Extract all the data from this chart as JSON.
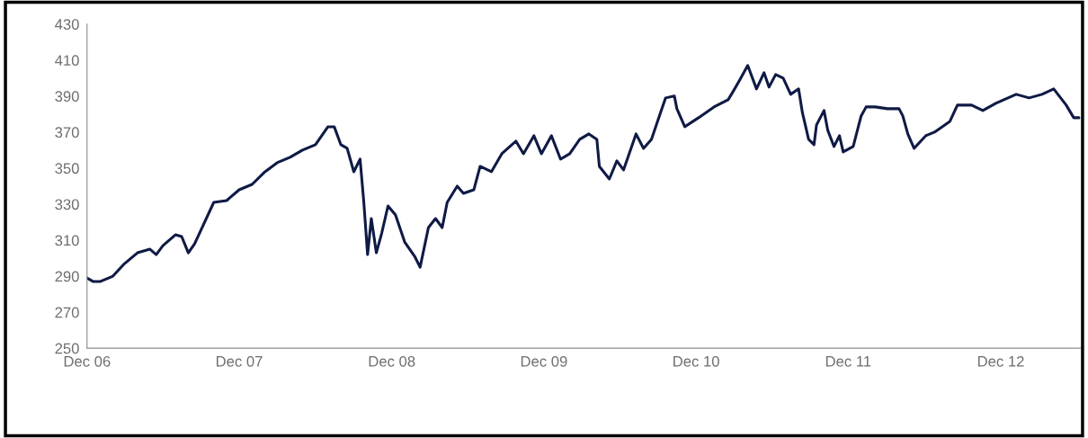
{
  "chart_data": {
    "type": "line",
    "x": [
      "2006-12-01",
      "2006-12-16",
      "2007-01-01",
      "2007-02-01",
      "2007-03-01",
      "2007-04-01",
      "2007-05-01",
      "2007-05-16",
      "2007-06-01",
      "2007-07-01",
      "2007-07-16",
      "2007-08-01",
      "2007-08-16",
      "2007-09-01",
      "2007-10-01",
      "2007-11-01",
      "2007-12-01",
      "2008-01-01",
      "2008-02-01",
      "2008-03-01",
      "2008-04-01",
      "2008-05-01",
      "2008-06-01",
      "2008-07-01",
      "2008-07-16",
      "2008-08-01",
      "2008-08-16",
      "2008-09-01",
      "2008-09-16",
      "2008-09-25",
      "2008-10-04",
      "2008-10-13",
      "2008-10-25",
      "2008-11-07",
      "2008-11-22",
      "2008-12-10",
      "2009-01-01",
      "2009-01-25",
      "2009-02-07",
      "2009-02-27",
      "2009-03-16",
      "2009-04-01",
      "2009-04-13",
      "2009-05-07",
      "2009-05-22",
      "2009-06-16",
      "2009-07-01",
      "2009-07-28",
      "2009-08-22",
      "2009-09-25",
      "2009-10-13",
      "2009-11-07",
      "2009-11-25",
      "2009-12-19",
      "2010-01-10",
      "2010-02-01",
      "2010-02-25",
      "2010-03-19",
      "2010-04-07",
      "2010-04-13",
      "2010-05-07",
      "2010-05-25",
      "2010-06-10",
      "2010-07-10",
      "2010-07-28",
      "2010-08-16",
      "2010-09-04",
      "2010-09-19",
      "2010-10-10",
      "2010-10-16",
      "2010-11-04",
      "2010-12-07",
      "2011-01-13",
      "2011-02-16",
      "2011-03-01",
      "2011-03-16",
      "2011-04-04",
      "2011-04-25",
      "2011-05-13",
      "2011-05-25",
      "2011-06-10",
      "2011-06-28",
      "2011-07-16",
      "2011-08-04",
      "2011-08-13",
      "2011-08-28",
      "2011-09-10",
      "2011-09-16",
      "2011-10-04",
      "2011-10-13",
      "2011-10-28",
      "2011-11-10",
      "2011-11-19",
      "2011-12-13",
      "2012-01-01",
      "2012-01-13",
      "2012-02-04",
      "2012-03-04",
      "2012-04-01",
      "2012-04-10",
      "2012-04-22",
      "2012-05-07",
      "2012-06-04",
      "2012-06-25",
      "2012-08-01",
      "2012-08-19",
      "2012-09-22",
      "2012-10-19",
      "2012-11-19",
      "2013-01-07",
      "2013-02-07",
      "2013-03-10",
      "2013-04-07",
      "2013-05-07",
      "2013-05-25",
      "2013-06-07"
    ],
    "series": [
      {
        "color": "#0f1a45",
        "values": [
          289,
          287,
          287,
          290,
          297,
          303,
          305,
          302,
          307,
          313,
          312,
          303,
          308,
          316,
          331,
          332,
          338,
          341,
          348,
          353,
          356,
          360,
          363,
          373,
          373,
          363,
          361,
          348,
          355,
          331,
          302,
          322,
          303,
          314,
          329,
          324,
          309,
          301,
          295,
          317,
          322,
          317,
          331,
          340,
          336,
          338,
          351,
          348,
          358,
          365,
          358,
          368,
          358,
          368,
          355,
          358,
          366,
          369,
          366,
          351,
          344,
          354,
          349,
          369,
          361,
          366,
          379,
          389,
          390,
          383,
          373,
          378,
          384,
          388,
          393,
          399,
          407,
          394,
          403,
          395,
          402,
          400,
          391,
          394,
          381,
          366,
          363,
          374,
          382,
          371,
          362,
          368,
          359,
          362,
          379,
          384,
          384,
          383,
          383,
          379,
          369,
          361,
          368,
          370,
          376,
          385,
          385,
          382,
          386,
          391,
          389,
          391,
          394,
          385,
          378,
          378
        ]
      }
    ],
    "xlim": [
      "2006-12-01",
      "2013-06-10"
    ],
    "xticks": [
      {
        "value": "2006-12-01",
        "label": "Dec 06"
      },
      {
        "value": "2007-12-01",
        "label": "Dec 07"
      },
      {
        "value": "2008-12-01",
        "label": "Dec 08"
      },
      {
        "value": "2009-12-01",
        "label": "Dec 09"
      },
      {
        "value": "2010-12-01",
        "label": "Dec 10"
      },
      {
        "value": "2011-12-01",
        "label": "Dec 11"
      },
      {
        "value": "2012-12-01",
        "label": "Dec 12"
      }
    ],
    "ylim": [
      250,
      430
    ],
    "yticks": [
      250,
      270,
      290,
      310,
      330,
      350,
      370,
      390,
      410,
      430
    ],
    "grid": false,
    "legend": false,
    "marker": "none",
    "line_style": "solid"
  }
}
